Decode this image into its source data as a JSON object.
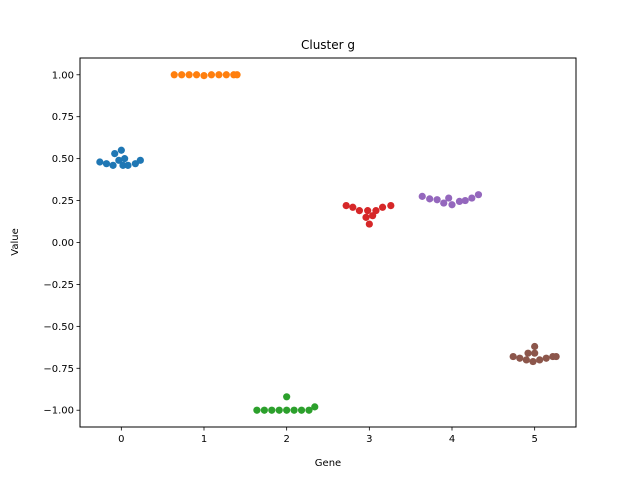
{
  "chart_data": {
    "type": "scatter",
    "subtype": "swarm",
    "title": "Cluster g",
    "xlabel": "Gene",
    "ylabel": "Value",
    "categories": [
      "0",
      "1",
      "2",
      "3",
      "4",
      "5"
    ],
    "xlim": [
      -0.5,
      5.5
    ],
    "ylim": [
      -1.1,
      1.1
    ],
    "yticks": [
      "−1.00",
      "−0.75",
      "−0.50",
      "−0.25",
      "0.00",
      "0.25",
      "0.50",
      "0.75",
      "1.00"
    ],
    "ytick_values": [
      -1.0,
      -0.75,
      -0.5,
      -0.25,
      0.0,
      0.25,
      0.5,
      0.75,
      1.0
    ],
    "grid": false,
    "series": [
      {
        "category": "0",
        "color": "#1f77b4",
        "points": [
          [
            -0.26,
            0.48
          ],
          [
            -0.18,
            0.47
          ],
          [
            -0.1,
            0.46
          ],
          [
            -0.08,
            0.53
          ],
          [
            -0.03,
            0.49
          ],
          [
            0.0,
            0.55
          ],
          [
            0.02,
            0.46
          ],
          [
            0.04,
            0.5
          ],
          [
            0.08,
            0.46
          ],
          [
            0.17,
            0.47
          ],
          [
            0.23,
            0.49
          ]
        ]
      },
      {
        "category": "1",
        "color": "#ff7f0e",
        "points": [
          [
            0.64,
            1.0
          ],
          [
            0.73,
            1.0
          ],
          [
            0.82,
            1.0
          ],
          [
            0.91,
            1.0
          ],
          [
            1.0,
            0.995
          ],
          [
            1.09,
            1.0
          ],
          [
            1.18,
            1.0
          ],
          [
            1.27,
            1.0
          ],
          [
            1.36,
            1.0
          ],
          [
            1.4,
            1.0
          ]
        ]
      },
      {
        "category": "2",
        "color": "#2ca02c",
        "points": [
          [
            1.64,
            -1.0
          ],
          [
            1.73,
            -1.0
          ],
          [
            1.82,
            -1.0
          ],
          [
            1.91,
            -1.0
          ],
          [
            2.0,
            -0.92
          ],
          [
            2.0,
            -1.0
          ],
          [
            2.09,
            -1.0
          ],
          [
            2.18,
            -1.0
          ],
          [
            2.27,
            -1.0
          ],
          [
            2.34,
            -0.98
          ]
        ]
      },
      {
        "category": "3",
        "color": "#d62728",
        "points": [
          [
            2.72,
            0.22
          ],
          [
            2.8,
            0.21
          ],
          [
            2.88,
            0.19
          ],
          [
            2.96,
            0.15
          ],
          [
            2.98,
            0.19
          ],
          [
            3.0,
            0.11
          ],
          [
            3.04,
            0.16
          ],
          [
            3.08,
            0.19
          ],
          [
            3.16,
            0.21
          ],
          [
            3.26,
            0.22
          ]
        ]
      },
      {
        "category": "4",
        "color": "#9467bd",
        "points": [
          [
            3.64,
            0.275
          ],
          [
            3.73,
            0.26
          ],
          [
            3.82,
            0.255
          ],
          [
            3.9,
            0.235
          ],
          [
            3.96,
            0.265
          ],
          [
            4.0,
            0.225
          ],
          [
            4.09,
            0.245
          ],
          [
            4.16,
            0.25
          ],
          [
            4.24,
            0.265
          ],
          [
            4.32,
            0.285
          ]
        ]
      },
      {
        "category": "5",
        "color": "#8c564b",
        "points": [
          [
            4.74,
            -0.68
          ],
          [
            4.82,
            -0.69
          ],
          [
            4.9,
            -0.7
          ],
          [
            4.92,
            -0.66
          ],
          [
            4.98,
            -0.71
          ],
          [
            5.0,
            -0.62
          ],
          [
            5.0,
            -0.66
          ],
          [
            5.06,
            -0.7
          ],
          [
            5.14,
            -0.69
          ],
          [
            5.22,
            -0.68
          ],
          [
            5.26,
            -0.68
          ]
        ]
      }
    ]
  }
}
